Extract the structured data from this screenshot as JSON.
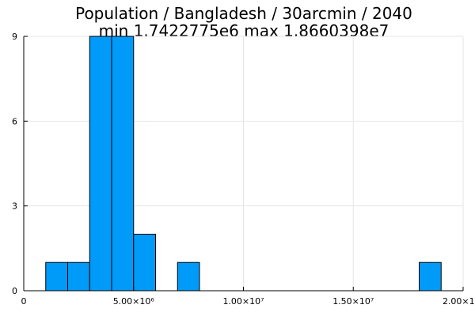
{
  "chart_data": {
    "type": "bar",
    "title_lines": [
      "Population / Bangladesh / 30arcmin / 2040",
      "min 1.7422775e6  max 1.8660398e7"
    ],
    "xlabel": "",
    "ylabel": "",
    "xlim": [
      0,
      20000000
    ],
    "ylim": [
      0,
      9
    ],
    "x_ticks": [
      {
        "value": 0,
        "label": "0"
      },
      {
        "value": 5000000,
        "label": "5.00×10⁶"
      },
      {
        "value": 10000000,
        "label": "1.00×10⁷"
      },
      {
        "value": 15000000,
        "label": "1.50×10⁷"
      },
      {
        "value": 20000000,
        "label": "2.00×10⁷"
      }
    ],
    "y_ticks": [
      {
        "value": 0,
        "label": "0"
      },
      {
        "value": 3,
        "label": "3"
      },
      {
        "value": 6,
        "label": "6"
      },
      {
        "value": 9,
        "label": "9"
      }
    ],
    "bins": [
      {
        "x0": 1000000,
        "x1": 2000000,
        "count": 1
      },
      {
        "x0": 2000000,
        "x1": 3000000,
        "count": 1
      },
      {
        "x0": 3000000,
        "x1": 4000000,
        "count": 9
      },
      {
        "x0": 4000000,
        "x1": 5000000,
        "count": 9
      },
      {
        "x0": 5000000,
        "x1": 6000000,
        "count": 2
      },
      {
        "x0": 7000000,
        "x1": 8000000,
        "count": 1
      },
      {
        "x0": 18000000,
        "x1": 19000000,
        "count": 1
      }
    ],
    "bar_color": "#009AF9",
    "grid": true,
    "legend": false
  }
}
